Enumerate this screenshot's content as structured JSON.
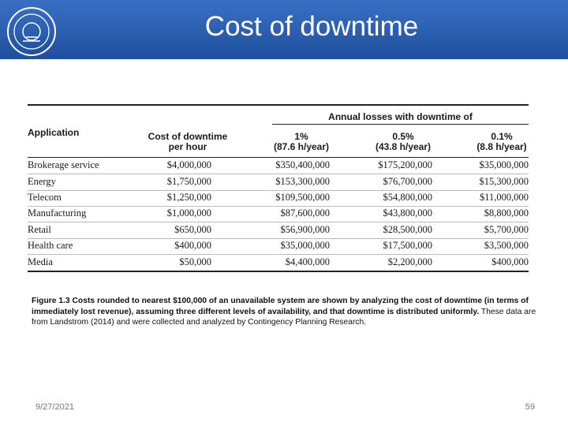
{
  "header": {
    "title": "Cost of downtime"
  },
  "table": {
    "group_header": "Annual losses with downtime of",
    "columns": [
      [
        "Application"
      ],
      [
        "Cost of downtime",
        "per hour"
      ],
      [
        "1%",
        "(87.6 h/year)"
      ],
      [
        "0.5%",
        "(43.8 h/year)"
      ],
      [
        "0.1%",
        "(8.8 h/year)"
      ]
    ],
    "rows": [
      [
        "Brokerage service",
        "$4,000,000",
        "$350,400,000",
        "$175,200,000",
        "$35,000,000"
      ],
      [
        "Energy",
        "$1,750,000",
        "$153,300,000",
        "$76,700,000",
        "$15,300,000"
      ],
      [
        "Telecom",
        "$1,250,000",
        "$109,500,000",
        "$54,800,000",
        "$11,000,000"
      ],
      [
        "Manufacturing",
        "$1,000,000",
        "$87,600,000",
        "$43,800,000",
        "$8,800,000"
      ],
      [
        "Retail",
        "$650,000",
        "$56,900,000",
        "$28,500,000",
        "$5,700,000"
      ],
      [
        "Health care",
        "$400,000",
        "$35,000,000",
        "$17,500,000",
        "$3,500,000"
      ],
      [
        "Media",
        "$50,000",
        "$4,400,000",
        "$2,200,000",
        "$400,000"
      ]
    ]
  },
  "caption": {
    "bold": "Figure 1.3 Costs rounded to nearest $100,000 of an unavailable system are shown by analyzing the cost of downtime (in terms of immediately lost revenue), assuming three different levels of availability, and that downtime is distributed uniformly.",
    "text": "These data are from Landstrom (2014) and were collected and analyzed by Contingency Planning Research."
  },
  "footer": {
    "date": "9/27/2021",
    "page": "59"
  }
}
